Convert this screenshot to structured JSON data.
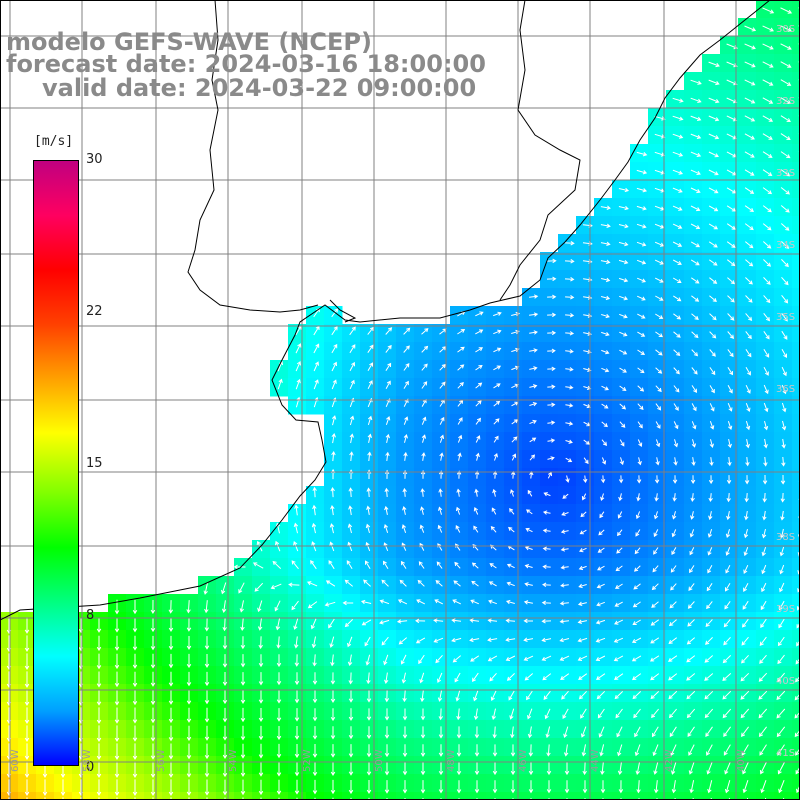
{
  "header": {
    "line1": "modelo GEFS-WAVE (NCEP)",
    "line2": "forecast date: 2024-03-16 18:00:00",
    "line3": "valid date: 2024-03-22 09:00:00"
  },
  "colorbar": {
    "unit": "[m/s]",
    "ticks": [
      "30",
      "22",
      "15",
      "8",
      "0"
    ],
    "values": [
      30,
      22,
      15,
      8,
      0
    ],
    "colors": [
      "#0000ff",
      "#00a0ff",
      "#00ffff",
      "#00ff80",
      "#00ff00",
      "#80ff00",
      "#ffff00",
      "#ffa000",
      "#ff4000",
      "#ff0000",
      "#ff0060",
      "#c00080"
    ]
  },
  "map": {
    "field": "wind speed with direction arrows",
    "lat_labels": [
      "30S",
      "32S",
      "33S",
      "34S",
      "35S",
      "36S",
      "38S",
      "39S",
      "40S",
      "41S"
    ],
    "lon_labels": [
      "60W",
      "58W",
      "56W",
      "54W",
      "52W",
      "50W",
      "48W",
      "46W",
      "44W",
      "42W",
      "40W"
    ],
    "colors": {
      "land": "#ffffff",
      "grid": "#808080",
      "coast": "#000000",
      "arrow": "#ffffff"
    }
  }
}
